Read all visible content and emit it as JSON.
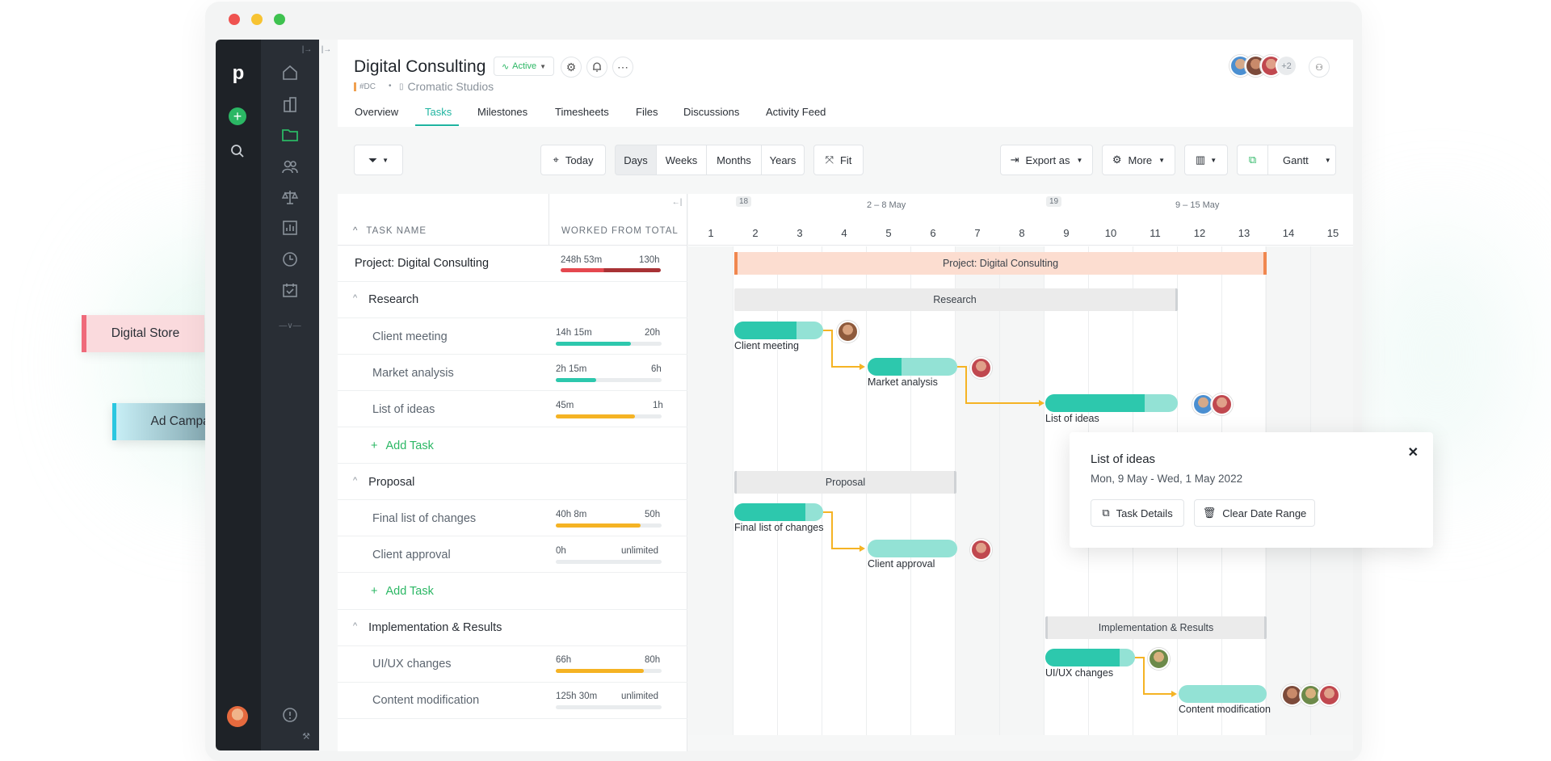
{
  "floating": {
    "digital_store": "Digital Store",
    "ad_campaign": "Ad Campaign"
  },
  "project": {
    "title": "Digital Consulting",
    "status": "Active",
    "code": "#DC",
    "client": "Cromatic Studios",
    "members_extra": "+2"
  },
  "tabs": [
    "Overview",
    "Tasks",
    "Milestones",
    "Timesheets",
    "Files",
    "Discussions",
    "Activity Feed"
  ],
  "toolbar": {
    "today": "Today",
    "scales": [
      "Days",
      "Weeks",
      "Months",
      "Years"
    ],
    "fit": "Fit",
    "export": "Export as",
    "more": "More",
    "view": "Gantt"
  },
  "table": {
    "col_task": "TASK NAME",
    "col_worked": "WORKED FROM TOTAL",
    "project_row": {
      "name": "Project: Digital Consulting",
      "worked": "248h 53m",
      "total": "130h"
    },
    "groups": [
      {
        "name": "Research",
        "tasks": [
          {
            "name": "Client meeting",
            "worked": "14h 15m",
            "total": "20h",
            "progress": 0.71,
            "color": "#2dc8ad"
          },
          {
            "name": "Market analysis",
            "worked": "2h 15m",
            "total": "6h",
            "progress": 0.38,
            "color": "#2dc8ad"
          },
          {
            "name": "List of ideas",
            "worked": "45m",
            "total": "1h",
            "progress": 0.75,
            "color": "#f5b324"
          }
        ]
      },
      {
        "name": "Proposal",
        "tasks": [
          {
            "name": "Final list of changes",
            "worked": "40h 8m",
            "total": "50h",
            "progress": 0.8,
            "color": "#f5b324"
          },
          {
            "name": "Client approval",
            "worked": "0h",
            "total": "unlimited",
            "progress": 0,
            "color": "#f5b324"
          }
        ]
      },
      {
        "name": "Implementation & Results",
        "tasks": [
          {
            "name": "UI/UX changes",
            "worked": "66h",
            "total": "80h",
            "progress": 0.83,
            "color": "#f5b324"
          },
          {
            "name": "Content modification",
            "worked": "125h 30m",
            "total": "unlimited",
            "progress": 0,
            "color": "#f5b324"
          }
        ]
      }
    ],
    "add_task": "Add Task"
  },
  "timeline": {
    "week_numbers": [
      "18",
      "19"
    ],
    "week_ranges": [
      "2 – 8 May",
      "9 – 15 May"
    ],
    "days": [
      "1",
      "2",
      "3",
      "4",
      "5",
      "6",
      "7",
      "8",
      "9",
      "10",
      "11",
      "12",
      "13",
      "14",
      "15"
    ],
    "bars": {
      "project": "Project: Digital Consulting",
      "research": "Research",
      "proposal": "Proposal",
      "implementation": "Implementation & Results",
      "client_meeting": "Client meeting",
      "market_analysis": "Market analysis",
      "list_of_ideas": "List of ideas",
      "final_list": "Final list of changes",
      "client_approval": "Client approval",
      "uiux": "UI/UX changes",
      "content_mod": "Content modification"
    }
  },
  "popup": {
    "title": "List of ideas",
    "dates": "Mon, 9 May - Wed, 1 May 2022",
    "details": "Task Details",
    "clear": "Clear Date Range"
  },
  "colors": {
    "accent": "#2bb764",
    "teal": "#2dc8ad",
    "teal_light": "#93e2d5",
    "orange": "#f5a05a",
    "yellow": "#f5b324",
    "red": "#e05050"
  }
}
